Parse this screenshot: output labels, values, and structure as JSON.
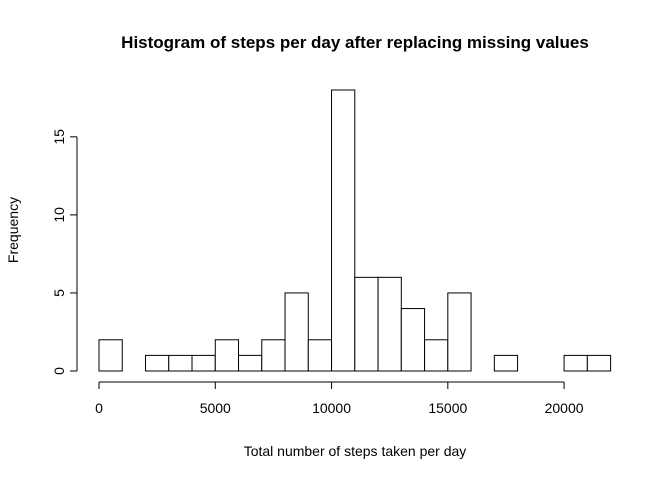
{
  "chart_data": {
    "type": "bar",
    "title": "Histogram of steps per day after replacing missing values",
    "xlabel": "Total number of steps taken per day",
    "ylabel": "Frequency",
    "bin_width": 1000,
    "bin_starts": [
      0,
      1000,
      2000,
      3000,
      4000,
      5000,
      6000,
      7000,
      8000,
      9000,
      10000,
      11000,
      12000,
      13000,
      14000,
      15000,
      16000,
      17000,
      18000,
      19000,
      20000,
      21000
    ],
    "values": [
      2,
      0,
      1,
      1,
      1,
      2,
      1,
      2,
      5,
      2,
      18,
      6,
      6,
      4,
      2,
      5,
      0,
      1,
      0,
      0,
      1,
      1
    ],
    "xticks": [
      0,
      5000,
      10000,
      15000,
      20000
    ],
    "xtick_labels": [
      "0",
      "5000",
      "10000",
      "15000",
      "20000"
    ],
    "yticks": [
      0,
      5,
      10,
      15
    ],
    "ytick_labels": [
      "0",
      "5",
      "10",
      "15"
    ],
    "xlim": [
      0,
      22000
    ],
    "ylim": [
      0,
      18
    ],
    "grid": false,
    "legend": "none"
  }
}
